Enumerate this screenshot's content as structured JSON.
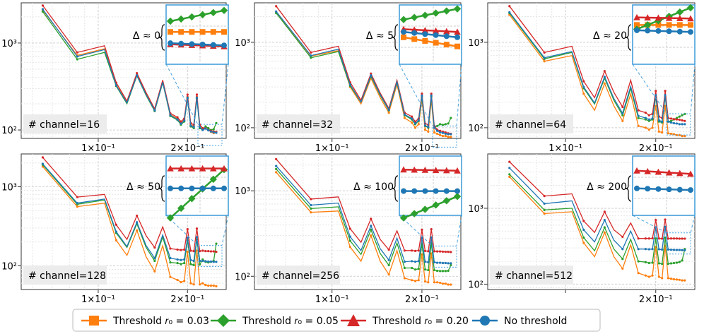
{
  "chart_data": [
    {
      "type": "line",
      "label": "# channel=16",
      "annotation": "Δ ≈ 0",
      "xscale": "log",
      "yscale": "log",
      "xticks": [
        "1×10⁻¹",
        "2×10⁻¹"
      ],
      "yticks": [
        "10²",
        "10³"
      ],
      "grid": true,
      "xlim": [
        0.055,
        0.27
      ],
      "ylim": [
        80,
        2900
      ],
      "x": [
        0.065,
        0.085,
        0.105,
        0.115,
        0.125,
        0.135,
        0.145,
        0.155,
        0.165,
        0.175,
        0.185,
        0.19,
        0.195,
        0.2,
        0.205,
        0.21,
        0.215,
        0.22,
        0.225,
        0.23,
        0.235,
        0.24,
        0.245,
        0.25
      ],
      "series": [
        {
          "name": "Threshold r0 = 0.03",
          "color": "#ff7f0e",
          "values": [
            2400,
            720,
            860,
            330,
            210,
            430,
            260,
            170,
            360,
            150,
            135,
            120,
            130,
            240,
            115,
            110,
            240,
            110,
            100,
            105,
            100,
            95,
            92,
            95
          ]
        },
        {
          "name": "Threshold r0 = 0.05",
          "color": "#2ca02c",
          "values": [
            2300,
            650,
            780,
            320,
            200,
            420,
            250,
            165,
            350,
            145,
            130,
            115,
            125,
            230,
            110,
            105,
            230,
            105,
            100,
            110,
            105,
            100,
            102,
            120
          ]
        },
        {
          "name": "Threshold r0 = 0.20",
          "color": "#d62728",
          "values": [
            2700,
            780,
            930,
            350,
            215,
            450,
            270,
            175,
            375,
            155,
            140,
            125,
            135,
            255,
            120,
            115,
            255,
            115,
            105,
            105,
            100,
            98,
            96,
            95
          ]
        },
        {
          "name": "No threshold",
          "color": "#1f77b4",
          "values": [
            2450,
            700,
            840,
            325,
            205,
            425,
            255,
            168,
            355,
            148,
            132,
            118,
            128,
            235,
            112,
            108,
            235,
            108,
            100,
            104,
            99,
            96,
            94,
            93
          ]
        }
      ]
    },
    {
      "type": "line",
      "label": "# channel=32",
      "annotation": "Δ ≈ 5",
      "xscale": "log",
      "yscale": "log",
      "xticks": [
        "1×10⁻¹",
        "2×10⁻¹"
      ],
      "yticks": [
        "10²",
        "10³"
      ],
      "grid": true,
      "xlim": [
        0.055,
        0.27
      ],
      "ylim": [
        75,
        2900
      ],
      "x": [
        0.065,
        0.085,
        0.105,
        0.115,
        0.125,
        0.135,
        0.145,
        0.155,
        0.165,
        0.175,
        0.185,
        0.19,
        0.195,
        0.2,
        0.205,
        0.21,
        0.215,
        0.22,
        0.225,
        0.23,
        0.235,
        0.24,
        0.245,
        0.25
      ],
      "series": [
        {
          "name": "Threshold r0 = 0.03",
          "color": "#ff7f0e",
          "values": [
            2250,
            690,
            800,
            300,
            190,
            380,
            225,
            150,
            320,
            130,
            115,
            100,
            110,
            210,
            95,
            90,
            210,
            88,
            85,
            82,
            80,
            80,
            78,
            78
          ]
        },
        {
          "name": "Threshold r0 = 0.05",
          "color": "#2ca02c",
          "values": [
            2200,
            660,
            780,
            310,
            200,
            400,
            240,
            160,
            340,
            140,
            125,
            110,
            120,
            230,
            105,
            100,
            230,
            100,
            105,
            110,
            108,
            110,
            112,
            130
          ]
        },
        {
          "name": "Threshold r0 = 0.20",
          "color": "#d62728",
          "values": [
            2650,
            760,
            900,
            340,
            210,
            430,
            255,
            168,
            360,
            150,
            135,
            118,
            128,
            250,
            112,
            108,
            250,
            105,
            95,
            92,
            90,
            88,
            86,
            85
          ]
        },
        {
          "name": "No threshold",
          "color": "#1f77b4",
          "values": [
            2300,
            700,
            830,
            320,
            200,
            410,
            245,
            162,
            345,
            143,
            128,
            112,
            122,
            238,
            106,
            102,
            238,
            100,
            92,
            88,
            87,
            85,
            84,
            84
          ]
        }
      ]
    },
    {
      "type": "line",
      "label": "# channel=64",
      "annotation": "Δ ≈ 20",
      "xscale": "log",
      "yscale": "log",
      "xticks": [
        "1×10⁻¹",
        "2×10⁻¹"
      ],
      "yticks": [
        "10²",
        "10³"
      ],
      "grid": true,
      "xlim": [
        0.055,
        0.27
      ],
      "ylim": [
        75,
        2900
      ],
      "x": [
        0.065,
        0.085,
        0.105,
        0.115,
        0.125,
        0.135,
        0.145,
        0.155,
        0.165,
        0.175,
        0.185,
        0.19,
        0.195,
        0.2,
        0.205,
        0.21,
        0.215,
        0.22,
        0.225,
        0.23,
        0.235,
        0.24,
        0.245,
        0.25
      ],
      "series": [
        {
          "name": "Threshold r0 = 0.03",
          "color": "#ff7f0e",
          "values": [
            2100,
            600,
            700,
            250,
            160,
            330,
            180,
            120,
            250,
            105,
            100,
            95,
            100,
            180,
            90,
            88,
            180,
            86,
            85,
            84,
            82,
            82,
            80,
            80
          ]
        },
        {
          "name": "Threshold r0 = 0.05",
          "color": "#2ca02c",
          "values": [
            2200,
            640,
            760,
            290,
            190,
            380,
            210,
            140,
            290,
            130,
            125,
            120,
            125,
            230,
            118,
            115,
            230,
            118,
            120,
            125,
            130,
            135,
            140,
            145
          ]
        },
        {
          "name": "Threshold r0 = 0.20",
          "color": "#d62728",
          "values": [
            2650,
            760,
            900,
            350,
            225,
            460,
            260,
            175,
            360,
            160,
            150,
            140,
            145,
            270,
            135,
            130,
            270,
            130,
            128,
            126,
            125,
            124,
            122,
            120
          ]
        },
        {
          "name": "No threshold",
          "color": "#1f77b4",
          "values": [
            2250,
            660,
            780,
            300,
            195,
            395,
            220,
            148,
            305,
            138,
            130,
            125,
            128,
            240,
            122,
            118,
            240,
            118,
            115,
            113,
            112,
            110,
            110,
            110
          ]
        }
      ]
    },
    {
      "type": "line",
      "label": "# channel=128",
      "annotation": "Δ ≈ 50",
      "xscale": "log",
      "yscale": "log",
      "xticks": [
        "1×10⁻¹",
        "2×10⁻¹"
      ],
      "yticks": [
        "10²",
        "10³"
      ],
      "grid": true,
      "xlim": [
        0.055,
        0.27
      ],
      "ylim": [
        50,
        2600
      ],
      "x": [
        0.065,
        0.085,
        0.105,
        0.115,
        0.125,
        0.135,
        0.145,
        0.155,
        0.165,
        0.175,
        0.185,
        0.19,
        0.195,
        0.2,
        0.205,
        0.21,
        0.215,
        0.22,
        0.225,
        0.23,
        0.235,
        0.24,
        0.245,
        0.25
      ],
      "series": [
        {
          "name": "Threshold r0 = 0.03",
          "color": "#ff7f0e",
          "values": [
            1800,
            560,
            620,
            210,
            135,
            280,
            130,
            85,
            180,
            72,
            66,
            62,
            64,
            150,
            60,
            58,
            155,
            58,
            60,
            57,
            56,
            56,
            56,
            55
          ]
        },
        {
          "name": "Threshold r0 = 0.05",
          "color": "#2ca02c",
          "values": [
            1900,
            600,
            680,
            260,
            170,
            340,
            170,
            115,
            230,
            110,
            108,
            105,
            108,
            210,
            105,
            102,
            215,
            104,
            120,
            112,
            110,
            112,
            115,
            190
          ]
        },
        {
          "name": "Threshold r0 = 0.20",
          "color": "#d62728",
          "values": [
            2350,
            740,
            800,
            330,
            215,
            430,
            240,
            170,
            310,
            165,
            160,
            158,
            160,
            290,
            155,
            153,
            295,
            153,
            155,
            153,
            153,
            152,
            152,
            150
          ]
        },
        {
          "name": "No threshold",
          "color": "#1f77b4",
          "values": [
            1950,
            620,
            700,
            270,
            175,
            355,
            180,
            125,
            245,
            125,
            120,
            118,
            120,
            225,
            118,
            115,
            230,
            115,
            115,
            114,
            113,
            113,
            112,
            112
          ]
        }
      ]
    },
    {
      "type": "line",
      "label": "# channel=256",
      "annotation": "Δ ≈ 100",
      "xscale": "log",
      "yscale": "log",
      "xticks": [
        "1×10⁻¹",
        "2×10⁻¹"
      ],
      "yticks": [
        "10²",
        "10³"
      ],
      "grid": true,
      "xlim": [
        0.055,
        0.27
      ],
      "ylim": [
        70,
        2700
      ],
      "x": [
        0.065,
        0.085,
        0.105,
        0.115,
        0.125,
        0.135,
        0.145,
        0.155,
        0.165,
        0.175,
        0.185,
        0.19,
        0.195,
        0.2,
        0.205,
        0.21,
        0.215,
        0.22,
        0.225,
        0.23,
        0.235,
        0.24,
        0.245,
        0.25
      ],
      "series": [
        {
          "name": "Threshold r0 = 0.03",
          "color": "#ff7f0e",
          "values": [
            1650,
            560,
            580,
            220,
            150,
            300,
            150,
            105,
            200,
            95,
            90,
            88,
            90,
            180,
            87,
            85,
            185,
            85,
            85,
            84,
            82,
            82,
            80,
            80
          ]
        },
        {
          "name": "Threshold r0 = 0.05",
          "color": "#2ca02c",
          "values": [
            1800,
            620,
            650,
            260,
            180,
            350,
            185,
            135,
            245,
            125,
            125,
            120,
            122,
            240,
            120,
            118,
            245,
            118,
            116,
            115,
            115,
            115,
            116,
            135
          ]
        },
        {
          "name": "Threshold r0 = 0.20",
          "color": "#d62728",
          "values": [
            2350,
            800,
            850,
            360,
            250,
            470,
            270,
            205,
            340,
            200,
            200,
            198,
            200,
            350,
            198,
            196,
            355,
            196,
            195,
            195,
            194,
            193,
            193,
            192
          ]
        },
        {
          "name": "No threshold",
          "color": "#1f77b4",
          "values": [
            1950,
            680,
            720,
            290,
            200,
            390,
            210,
            155,
            280,
            148,
            150,
            148,
            150,
            280,
            148,
            146,
            285,
            146,
            144,
            144,
            143,
            143,
            142,
            142
          ]
        }
      ]
    },
    {
      "type": "line",
      "label": "# channel=512",
      "annotation": "Δ ≈ 200",
      "xscale": "log",
      "yscale": "log",
      "xticks": [
        "2×10⁻¹"
      ],
      "yticks": [
        "10²",
        "10³"
      ],
      "grid": true,
      "xlim": [
        0.055,
        0.27
      ],
      "ylim": [
        85,
        5200
      ],
      "x": [
        0.065,
        0.085,
        0.105,
        0.115,
        0.125,
        0.135,
        0.145,
        0.155,
        0.165,
        0.175,
        0.185,
        0.19,
        0.195,
        0.2,
        0.205,
        0.21,
        0.215,
        0.22,
        0.225,
        0.23,
        0.235,
        0.24,
        0.245,
        0.25
      ],
      "series": [
        {
          "name": "Threshold r0 = 0.03",
          "color": "#ff7f0e",
          "values": [
            2600,
            850,
            900,
            350,
            230,
            480,
            230,
            160,
            330,
            140,
            130,
            125,
            130,
            310,
            125,
            120,
            320,
            120,
            118,
            116,
            115,
            114,
            112,
            112
          ]
        },
        {
          "name": "Threshold r0 = 0.05",
          "color": "#2ca02c",
          "values": [
            2800,
            950,
            1000,
            410,
            275,
            560,
            290,
            215,
            390,
            200,
            195,
            190,
            192,
            400,
            188,
            185,
            410,
            185,
            188,
            190,
            192,
            196,
            205,
            290
          ]
        },
        {
          "name": "Threshold r0 = 0.20",
          "color": "#d62728",
          "values": [
            4100,
            1450,
            1550,
            680,
            480,
            900,
            520,
            420,
            640,
            400,
            400,
            400,
            402,
            700,
            400,
            398,
            710,
            398,
            400,
            400,
            400,
            398,
            398,
            398
          ]
        },
        {
          "name": "No threshold",
          "color": "#1f77b4",
          "values": [
            3400,
            1150,
            1250,
            520,
            360,
            700,
            380,
            290,
            500,
            290,
            290,
            288,
            290,
            560,
            288,
            285,
            570,
            286,
            284,
            283,
            282,
            282,
            281,
            280
          ]
        }
      ]
    }
  ],
  "legend": {
    "items": [
      {
        "label": "Threshold 𝑟₀ = 0.03",
        "color": "#ff7f0e",
        "marker": "square"
      },
      {
        "label": "Threshold 𝑟₀ = 0.05",
        "color": "#2ca02c",
        "marker": "diamond"
      },
      {
        "label": "Threshold 𝑟₀ = 0.20",
        "color": "#d62728",
        "marker": "triangle"
      },
      {
        "label": "No threshold",
        "color": "#1f77b4",
        "marker": "circle"
      }
    ]
  }
}
